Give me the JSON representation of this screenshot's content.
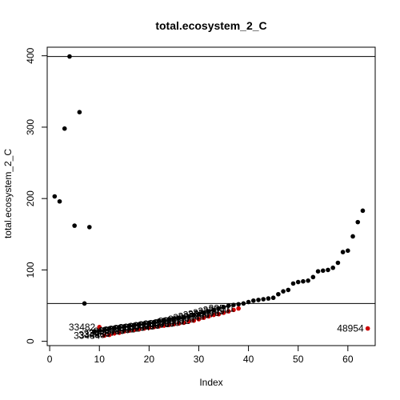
{
  "chart_data": {
    "type": "scatter",
    "title": "total.ecosystem_2_C",
    "xlabel": "Index",
    "ylabel": "total.ecosystem_2_C",
    "xlim": [
      -0.5,
      65.5
    ],
    "ylim": [
      -6,
      412
    ],
    "x_ticks": [
      0,
      10,
      20,
      30,
      40,
      50,
      60
    ],
    "y_ticks": [
      0,
      100,
      200,
      300,
      400
    ],
    "hlines": [
      399,
      53
    ],
    "grid": false,
    "legend": "none",
    "colors": {
      "default": "#000000",
      "highlight": "#cc0000"
    },
    "series": [
      {
        "color": "black",
        "x": [
          1,
          2,
          3,
          4,
          5,
          6,
          7,
          8,
          9,
          10,
          11,
          12,
          13,
          14,
          15,
          16,
          17,
          18,
          19,
          20,
          21,
          22,
          23,
          24,
          25,
          26,
          27,
          28,
          29,
          30,
          31,
          32,
          33,
          34,
          35,
          36,
          37,
          38,
          39,
          40,
          41,
          42,
          43,
          44,
          45,
          46,
          47,
          48,
          49,
          50,
          51,
          52,
          53,
          54,
          55,
          56,
          57,
          58,
          59,
          60,
          61,
          62,
          63
        ],
        "y": [
          203,
          196,
          298,
          399,
          162,
          321,
          53,
          160,
          14,
          16,
          17,
          18,
          19,
          20,
          21,
          22,
          23,
          24,
          25,
          26,
          27,
          29,
          30,
          31,
          32,
          33,
          34,
          35,
          37,
          38,
          40,
          42,
          44,
          46,
          48,
          50,
          51,
          52,
          53,
          55,
          57,
          58,
          59,
          60,
          61,
          66,
          70,
          72,
          81,
          83,
          84,
          85,
          90,
          98,
          99,
          100,
          103,
          110,
          125,
          127,
          147,
          167,
          183
        ]
      },
      {
        "color": "red",
        "x": [
          10,
          11,
          12,
          13,
          14,
          15,
          16,
          17,
          18,
          19,
          20,
          21,
          22,
          23,
          24,
          25,
          26,
          27,
          28,
          29,
          30,
          31,
          32,
          33,
          34,
          35,
          36,
          37,
          38,
          64
        ],
        "y": [
          20,
          8,
          9,
          11,
          12,
          14,
          15,
          16,
          17,
          18,
          19,
          20,
          21,
          22,
          23,
          24,
          25,
          26,
          28,
          29,
          31,
          33,
          35,
          37,
          38,
          40,
          42,
          44,
          46,
          18
        ]
      }
    ],
    "point_labels": [
      {
        "text": "33482",
        "x": 10,
        "y": 20
      },
      {
        "text": "33484",
        "x": 11,
        "y": 8
      },
      {
        "text": "33485",
        "x": 12,
        "y": 9
      },
      {
        "text": "33486",
        "x": 13,
        "y": 11
      },
      {
        "text": "33487",
        "x": 14,
        "y": 12
      },
      {
        "text": "33488",
        "x": 15,
        "y": 14
      },
      {
        "text": "33489",
        "x": 16,
        "y": 15
      },
      {
        "text": "33490",
        "x": 17,
        "y": 16
      },
      {
        "text": "33491",
        "x": 18,
        "y": 17
      },
      {
        "text": "33492",
        "x": 19,
        "y": 18
      },
      {
        "text": "33493",
        "x": 20,
        "y": 19
      },
      {
        "text": "33494",
        "x": 21,
        "y": 20
      },
      {
        "text": "33495",
        "x": 22,
        "y": 21
      },
      {
        "text": "33496",
        "x": 23,
        "y": 22
      },
      {
        "text": "33497",
        "x": 24,
        "y": 23
      },
      {
        "text": "33498",
        "x": 25,
        "y": 24
      },
      {
        "text": "33499",
        "x": 26,
        "y": 25
      },
      {
        "text": "33500",
        "x": 27,
        "y": 26
      },
      {
        "text": "33501",
        "x": 28,
        "y": 28
      },
      {
        "text": "33502",
        "x": 29,
        "y": 29
      },
      {
        "text": "33503",
        "x": 30,
        "y": 31
      },
      {
        "text": "33504",
        "x": 31,
        "y": 33
      },
      {
        "text": "33505",
        "x": 32,
        "y": 35
      },
      {
        "text": "33506",
        "x": 33,
        "y": 37
      },
      {
        "text": "33507",
        "x": 34,
        "y": 38
      },
      {
        "text": "33508",
        "x": 35,
        "y": 40
      },
      {
        "text": "33509",
        "x": 36,
        "y": 42
      },
      {
        "text": "33510",
        "x": 37,
        "y": 44
      },
      {
        "text": "33511",
        "x": 38,
        "y": 46
      },
      {
        "text": "48954",
        "x": 64,
        "y": 18
      }
    ]
  }
}
